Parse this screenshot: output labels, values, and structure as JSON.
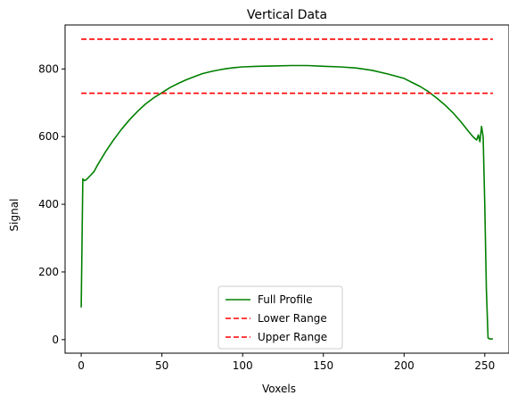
{
  "chart_data": {
    "type": "line",
    "title": "Vertical Data",
    "xlabel": "Voxels",
    "ylabel": "Signal",
    "xlim": [
      -10,
      265
    ],
    "ylim": [
      -40,
      930
    ],
    "xticks": [
      0,
      50,
      100,
      150,
      200,
      250
    ],
    "yticks": [
      0,
      200,
      400,
      600,
      800
    ],
    "grid": false,
    "legend_position": "lower-center",
    "series": [
      {
        "name": "Full Profile",
        "color": "#008000",
        "style": "solid",
        "x": [
          0,
          1,
          2,
          3,
          5,
          8,
          10,
          15,
          20,
          25,
          30,
          35,
          40,
          45,
          50,
          55,
          60,
          65,
          70,
          75,
          80,
          85,
          90,
          95,
          100,
          110,
          120,
          130,
          140,
          150,
          160,
          170,
          180,
          190,
          200,
          205,
          210,
          215,
          220,
          225,
          230,
          235,
          240,
          243,
          245,
          246,
          247,
          248,
          249,
          250,
          251,
          252,
          253,
          254,
          255
        ],
        "y": [
          95,
          475,
          470,
          472,
          482,
          497,
          515,
          555,
          590,
          622,
          650,
          675,
          697,
          715,
          730,
          745,
          757,
          768,
          777,
          786,
          792,
          797,
          801,
          804,
          806,
          808,
          809,
          810,
          810,
          808,
          806,
          803,
          796,
          785,
          772,
          760,
          748,
          733,
          715,
          695,
          672,
          645,
          615,
          598,
          590,
          605,
          585,
          630,
          600,
          400,
          150,
          5,
          2,
          2,
          2
        ]
      },
      {
        "name": "Lower Range",
        "color": "#ff0000",
        "style": "dashed",
        "x": [
          0,
          255
        ],
        "y": [
          728,
          728
        ]
      },
      {
        "name": "Upper Range",
        "color": "#ff0000",
        "style": "dashed",
        "x": [
          0,
          255
        ],
        "y": [
          888,
          888
        ]
      }
    ]
  }
}
